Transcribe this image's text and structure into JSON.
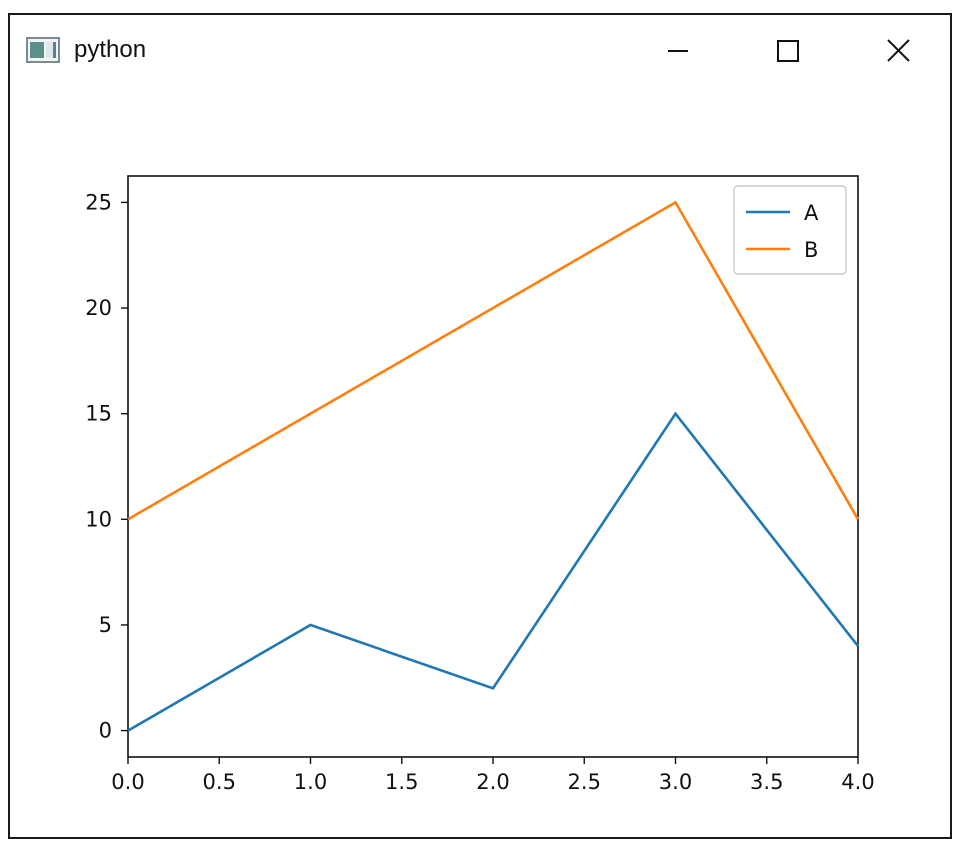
{
  "window": {
    "title": "python",
    "icon": "python-app-icon",
    "controls": [
      "minimize-icon",
      "maximize-icon",
      "close-icon"
    ]
  },
  "chart_data": {
    "type": "line",
    "x": [
      0,
      1,
      2,
      3,
      4
    ],
    "series": [
      {
        "name": "A",
        "values": [
          0,
          5,
          2,
          15,
          4
        ],
        "color": "#1f77b4"
      },
      {
        "name": "B",
        "values": [
          10,
          15,
          20,
          25,
          10
        ],
        "color": "#ff7f0e"
      }
    ],
    "xlim": [
      0.0,
      4.0
    ],
    "ylim": [
      -1.25,
      26.25
    ],
    "xticks": [
      "0.0",
      "0.5",
      "1.0",
      "1.5",
      "2.0",
      "2.5",
      "3.0",
      "3.5",
      "4.0"
    ],
    "yticks": [
      "0",
      "5",
      "10",
      "15",
      "20",
      "25"
    ],
    "title": "",
    "xlabel": "",
    "ylabel": "",
    "legend": "top-right",
    "grid": false
  }
}
